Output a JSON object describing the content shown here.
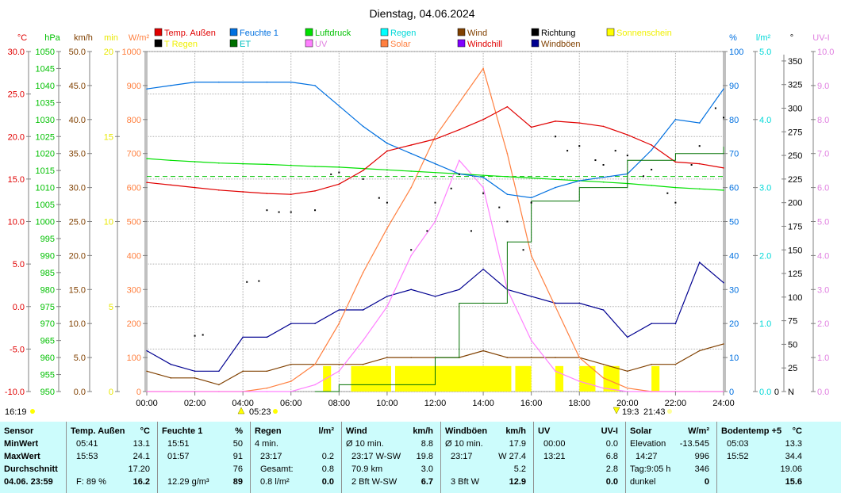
{
  "title": "Dienstag, 04.06.2024",
  "legend": [
    {
      "label": "Temp. Außen",
      "color": "#e00000",
      "text": "#e00000"
    },
    {
      "label": "Feuchte 1",
      "color": "#0070e0",
      "text": "#0070e0"
    },
    {
      "label": "Luftdruck",
      "color": "#00e000",
      "text": "#00c000"
    },
    {
      "label": "Regen",
      "color": "#00ffff",
      "text": "#00d8d8"
    },
    {
      "label": "Wind",
      "color": "#804000",
      "text": "#804000"
    },
    {
      "label": "Richtung",
      "color": "#000000",
      "text": "#000000"
    },
    {
      "label": "Sonnenschein",
      "color": "#ffff00",
      "text": "#f0f000"
    },
    {
      "label": "T Regen",
      "color": "#000000",
      "text": "#f0f000"
    },
    {
      "label": "ET",
      "color": "#007000",
      "text": "#00c0c0"
    },
    {
      "label": "UV",
      "color": "#ff80ff",
      "text": "#e080e0"
    },
    {
      "label": "Solar",
      "color": "#ff8040",
      "text": "#ff8040"
    },
    {
      "label": "Windchill",
      "color": "#8000ff",
      "text": "#e00000"
    },
    {
      "label": "Windböen",
      "color": "#000090",
      "text": "#804000"
    }
  ],
  "chart_data": {
    "type": "line",
    "title": "Dienstag, 04.06.2024",
    "x_ticks": [
      "00:00",
      "02:00",
      "04:00",
      "06:00",
      "08:00",
      "10:00",
      "12:00",
      "14:00",
      "16:00",
      "18:00",
      "20:00",
      "22:00",
      "24:00"
    ],
    "x_range": [
      "00:00",
      "24:00"
    ],
    "grid": true,
    "axes": {
      "temp": {
        "unit": "°C",
        "color": "#e00000",
        "min": -10,
        "max": 30,
        "step": 5,
        "dec": 1
      },
      "pressure": {
        "unit": "hPa",
        "color": "#00c000",
        "min": 950,
        "max": 1050,
        "step": 5,
        "dec": 0
      },
      "wind": {
        "unit": "km/h",
        "color": "#804000",
        "min": 0,
        "max": 50,
        "step": 5,
        "dec": 1
      },
      "sun": {
        "unit": "min",
        "color": "#e8e800",
        "min": 0,
        "max": 20,
        "step": 5,
        "dec": 0
      },
      "solar": {
        "unit": "W/m²",
        "color": "#ff8040",
        "min": 0,
        "max": 1000,
        "step": 100,
        "dec": 0
      },
      "humidity": {
        "unit": "%",
        "color": "#0070e0",
        "min": 0,
        "max": 100,
        "step": 10,
        "dec": 0
      },
      "rain": {
        "unit": "l/m²",
        "color": "#00d8d8",
        "min": 0,
        "max": 5,
        "step": 1,
        "dec": 1
      },
      "direction": {
        "unit": "°",
        "color": "#000000",
        "min": 0,
        "max": 360,
        "step": 25,
        "top": 350,
        "dec": 0,
        "zero_label": "N"
      },
      "uv": {
        "unit": "UV-I",
        "color": "#e080e0",
        "min": 0,
        "max": 10,
        "step": 1,
        "dec": 1
      }
    },
    "hourly_times": [
      "00:00",
      "01:00",
      "02:00",
      "03:00",
      "04:00",
      "05:00",
      "06:00",
      "07:00",
      "08:00",
      "09:00",
      "10:00",
      "11:00",
      "12:00",
      "13:00",
      "14:00",
      "15:00",
      "16:00",
      "17:00",
      "18:00",
      "19:00",
      "20:00",
      "21:00",
      "22:00",
      "23:00",
      "24:00"
    ],
    "series": [
      {
        "name": "Temp. Außen",
        "axis": "temp",
        "color": "#e00000",
        "values": [
          14.6,
          14.3,
          14.0,
          13.7,
          13.5,
          13.3,
          13.2,
          13.6,
          14.4,
          16.0,
          18.3,
          19.0,
          19.7,
          20.8,
          22.0,
          23.5,
          21.1,
          21.8,
          21.6,
          21.2,
          20.2,
          19.0,
          17.0,
          16.8,
          16.3
        ]
      },
      {
        "name": "Feuchte 1",
        "axis": "humidity",
        "color": "#0070e0",
        "values": [
          89,
          90,
          91,
          91,
          91,
          91,
          91,
          90,
          84,
          78,
          73,
          70,
          67,
          64,
          63,
          58,
          57,
          60,
          62,
          63,
          64,
          71,
          80,
          79,
          89
        ]
      },
      {
        "name": "Luftdruck",
        "axis": "pressure",
        "color": "#00e000",
        "values": [
          1018.5,
          1018,
          1017.6,
          1017.2,
          1017,
          1016.8,
          1016.5,
          1016.2,
          1016,
          1015.6,
          1015.2,
          1014.8,
          1014.4,
          1014,
          1013.6,
          1013.2,
          1012.8,
          1012.4,
          1012,
          1011.6,
          1011.2,
          1010.6,
          1010,
          1009.6,
          1009.2
        ]
      },
      {
        "name": "Solar",
        "axis": "solar",
        "color": "#ff8040",
        "values": [
          0,
          0,
          0,
          0,
          0,
          10,
          30,
          80,
          200,
          350,
          480,
          600,
          750,
          850,
          950,
          700,
          400,
          250,
          100,
          40,
          10,
          0,
          0,
          0,
          0
        ]
      },
      {
        "name": "UV",
        "axis": "uv",
        "color": "#ff80ff",
        "values": [
          0,
          0,
          0,
          0,
          0,
          0,
          0,
          0.2,
          0.6,
          1.5,
          2.5,
          4,
          5,
          6.8,
          6,
          3,
          1.5,
          0.6,
          0.3,
          0.1,
          0,
          0,
          0,
          0,
          0
        ]
      },
      {
        "name": "Windböen",
        "axis": "wind",
        "color": "#000090",
        "values": [
          6,
          4,
          3,
          3,
          8,
          8,
          10,
          10,
          12,
          12,
          14,
          15,
          14,
          15,
          18,
          15,
          14,
          13,
          13,
          12,
          8,
          10,
          10,
          19,
          16
        ]
      },
      {
        "name": "Wind",
        "axis": "wind",
        "color": "#804000",
        "values": [
          3,
          2,
          2,
          1,
          3,
          3,
          4,
          4,
          4,
          4,
          5,
          5,
          5,
          5,
          6,
          5,
          5,
          5,
          5,
          4,
          3,
          4,
          4,
          6,
          7
        ]
      }
    ],
    "et_steps": [
      [
        "07:00",
        0.0
      ],
      [
        "08:00",
        0.1
      ],
      [
        "12:00",
        0.5
      ],
      [
        "13:00",
        1.3
      ],
      [
        "15:00",
        2.2
      ],
      [
        "16:00",
        2.8
      ],
      [
        "18:00",
        3.0
      ],
      [
        "20:00",
        3.4
      ],
      [
        "22:00",
        3.5
      ],
      [
        "24:00",
        3.6
      ]
    ],
    "direction_points": [
      [
        "02:00",
        59
      ],
      [
        "02:20",
        60
      ],
      [
        "04:10",
        116
      ],
      [
        "04:40",
        117
      ],
      [
        "05:00",
        192
      ],
      [
        "05:30",
        190
      ],
      [
        "06:00",
        190
      ],
      [
        "07:00",
        192
      ],
      [
        "07:40",
        230
      ],
      [
        "08:00",
        232
      ],
      [
        "09:00",
        225
      ],
      [
        "09:40",
        205
      ],
      [
        "10:00",
        200
      ],
      [
        "11:00",
        150
      ],
      [
        "11:40",
        170
      ],
      [
        "12:00",
        200
      ],
      [
        "12:40",
        215
      ],
      [
        "13:00",
        230
      ],
      [
        "13:30",
        170
      ],
      [
        "14:00",
        210
      ],
      [
        "14:40",
        195
      ],
      [
        "15:00",
        180
      ],
      [
        "15:40",
        150
      ],
      [
        "16:00",
        200
      ],
      [
        "17:00",
        270
      ],
      [
        "17:30",
        255
      ],
      [
        "18:00",
        260
      ],
      [
        "18:40",
        245
      ],
      [
        "19:00",
        240
      ],
      [
        "19:30",
        255
      ],
      [
        "20:00",
        250
      ],
      [
        "20:40",
        228
      ],
      [
        "21:00",
        235
      ],
      [
        "21:40",
        210
      ],
      [
        "22:00",
        200
      ],
      [
        "22:40",
        240
      ],
      [
        "23:00",
        260
      ],
      [
        "23:40",
        300
      ],
      [
        "24:00",
        290
      ]
    ],
    "sunshine_intervals": [
      [
        "07:20",
        "07:40"
      ],
      [
        "08:30",
        "10:10"
      ],
      [
        "10:20",
        "15:10"
      ],
      [
        "15:20",
        "16:00"
      ],
      [
        "17:00",
        "17:20"
      ],
      [
        "18:00",
        "18:40"
      ],
      [
        "19:00",
        "19:40"
      ],
      [
        "21:00",
        "21:20"
      ]
    ],
    "sunshine_level": 1.5,
    "pressure_reference": 1013.25,
    "annotations": {
      "moonrise": "16:19",
      "sunrise": "05:23",
      "sunset": "19:3",
      "moonset": "21:43"
    }
  },
  "table": {
    "columns": [
      {
        "header": "Sensor",
        "unit": "",
        "rows": [
          [
            "MinWert",
            ""
          ],
          [
            "MaxWert",
            ""
          ],
          [
            "Durchschnitt",
            ""
          ],
          [
            "04.06. 23:59",
            ""
          ]
        ]
      },
      {
        "header": "Temp. Außen",
        "unit": "°C",
        "rows": [
          [
            "05:41",
            "13.1"
          ],
          [
            "15:53",
            "24.1"
          ],
          [
            "",
            "17.20"
          ],
          [
            "F: 89 %",
            "16.2"
          ]
        ]
      },
      {
        "header": "Feuchte 1",
        "unit": "%",
        "rows": [
          [
            "15:51",
            "50"
          ],
          [
            "01:57",
            "91"
          ],
          [
            "",
            "76"
          ],
          [
            "12.29 g/m³",
            "89"
          ]
        ]
      },
      {
        "header": "Regen",
        "unit": "l/m²",
        "rows": [
          [
            "4 min.",
            ""
          ],
          [
            "23:17",
            "0.2"
          ],
          [
            "Gesamt:",
            "0.8"
          ],
          [
            "0.8 l/m²",
            "0.0"
          ]
        ]
      },
      {
        "header": "Wind",
        "unit": "km/h",
        "rows": [
          [
            "Ø 10 min.",
            "8.8"
          ],
          [
            "23:17   W-SW",
            "19.8"
          ],
          [
            "70.9 km",
            "3.0"
          ],
          [
            "2 Bft W-SW",
            "6.7"
          ]
        ]
      },
      {
        "header": "Windböen",
        "unit": "km/h",
        "rows": [
          [
            "Ø 10 min.",
            "17.9"
          ],
          [
            "23:17",
            "W 27.4"
          ],
          [
            "",
            "5.2"
          ],
          [
            "3 Bft W",
            "12.9"
          ]
        ]
      },
      {
        "header": "UV",
        "unit": "UV-I",
        "rows": [
          [
            "00:00",
            "0.0"
          ],
          [
            "13:21",
            "6.8"
          ],
          [
            "",
            "2.8"
          ],
          [
            "",
            "0.0"
          ]
        ]
      },
      {
        "header": "Solar",
        "unit": "W/m²",
        "rows": [
          [
            "Elevation",
            "-13.545"
          ],
          [
            "14:27",
            "996"
          ],
          [
            "Tag:9:05 h",
            "346"
          ],
          [
            "dunkel",
            "0"
          ]
        ]
      },
      {
        "header": "Bodentemp +5",
        "unit": "°C",
        "rows": [
          [
            "05:03",
            "13.3"
          ],
          [
            "15:52",
            "34.4"
          ],
          [
            "",
            "19.06"
          ],
          [
            "",
            "15.6"
          ]
        ]
      }
    ]
  }
}
